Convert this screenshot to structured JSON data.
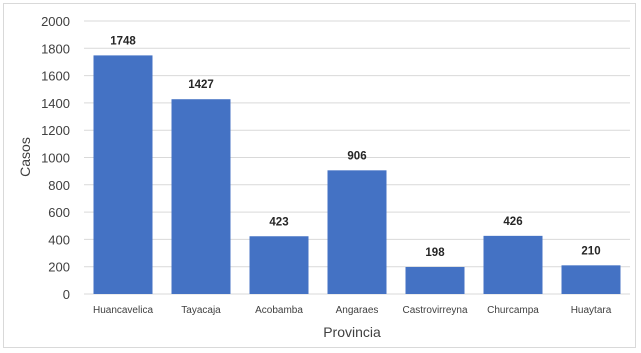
{
  "chart_data": {
    "type": "bar",
    "title": "",
    "xlabel": "Provincia",
    "ylabel": "Casos",
    "categories": [
      "Huancavelica",
      "Tayacaja",
      "Acobamba",
      "Angaraes",
      "Castrovirreyna",
      "Churcampa",
      "Huaytara"
    ],
    "values": [
      1748,
      1427,
      423,
      906,
      198,
      426,
      210
    ],
    "ylim": [
      0,
      2000
    ],
    "yticks": [
      0,
      200,
      400,
      600,
      800,
      1000,
      1200,
      1400,
      1600,
      1800,
      2000
    ],
    "grid": true,
    "legend": "none",
    "bar_color": "#4472c4"
  }
}
